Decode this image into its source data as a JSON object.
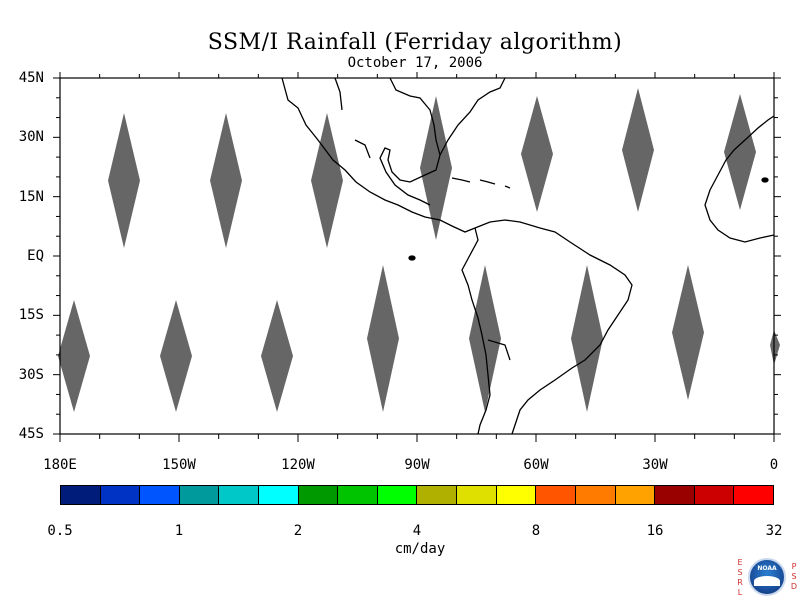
{
  "title": "SSM/I Rainfall (Ferriday algorithm)",
  "date": "October 17, 2006",
  "map": {
    "lon_range": [
      -180,
      0
    ],
    "lat_range": [
      -45,
      45
    ],
    "lat_labels": [
      {
        "lat": 45,
        "text": "45N"
      },
      {
        "lat": 30,
        "text": "30N"
      },
      {
        "lat": 15,
        "text": "15N"
      },
      {
        "lat": 0,
        "text": "EQ"
      },
      {
        "lat": -15,
        "text": "15S"
      },
      {
        "lat": -30,
        "text": "30S"
      },
      {
        "lat": -45,
        "text": "45S"
      }
    ],
    "lon_labels": [
      {
        "lon": -180,
        "text": "180E"
      },
      {
        "lon": -150,
        "text": "150W"
      },
      {
        "lon": -120,
        "text": "120W"
      },
      {
        "lon": -90,
        "text": "90W"
      },
      {
        "lon": -60,
        "text": "60W"
      },
      {
        "lon": -30,
        "text": "30W"
      },
      {
        "lon": 0,
        "text": "0"
      }
    ],
    "no_data_color": "#666666",
    "coast_color": "#000000"
  },
  "colorbar": {
    "colors": [
      "#001c7a",
      "#0033c4",
      "#0055ff",
      "#00999c",
      "#00c8c8",
      "#00ffff",
      "#009900",
      "#00c400",
      "#00ff00",
      "#b0b000",
      "#e0e000",
      "#ffff00",
      "#ff5500",
      "#ff7b00",
      "#ffa200",
      "#990000",
      "#cc0000",
      "#ff0000"
    ],
    "labels": [
      "0.5",
      "1",
      "2",
      "4",
      "8",
      "16",
      "32"
    ],
    "units": "cm/day"
  },
  "logo": {
    "left_letters": [
      "E",
      "S",
      "R",
      "L"
    ],
    "right_letters": [
      "P",
      "S",
      "D"
    ],
    "emblem_name": "noaa-logo",
    "emblem_text": "NOAA"
  }
}
